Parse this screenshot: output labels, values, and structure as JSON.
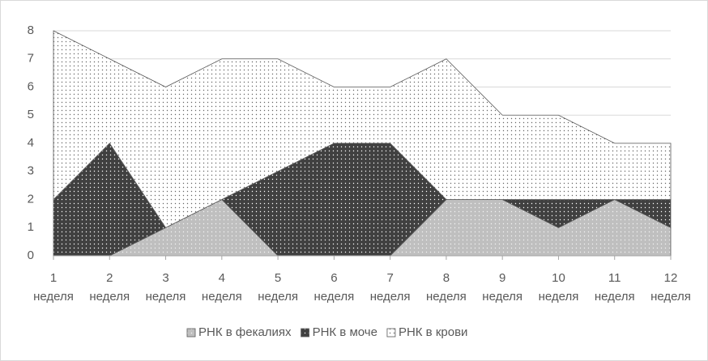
{
  "chart_data": {
    "type": "stacked_area",
    "categories": [
      "1 неделя",
      "2 неделя",
      "3 неделя",
      "4 неделя",
      "5 неделя",
      "6 неделя",
      "7 неделя",
      "8 неделя",
      "9 неделя",
      "10 неделя",
      "11 неделя",
      "12 неделя"
    ],
    "series": [
      {
        "name": "РНК в фекалиях",
        "color": "#bfbfbf",
        "values": [
          0,
          0,
          1,
          2,
          0,
          0,
          0,
          2,
          2,
          1,
          2,
          1
        ]
      },
      {
        "name": "РНК в моче",
        "color": "#404040",
        "values": [
          2,
          4,
          0,
          0,
          3,
          4,
          4,
          0,
          0,
          1,
          0,
          1
        ]
      },
      {
        "name": "РНК в крови",
        "color": "#ffffff",
        "values": [
          6,
          3,
          5,
          5,
          4,
          2,
          2,
          5,
          3,
          3,
          2,
          2
        ]
      }
    ],
    "ylim": [
      0,
      8
    ],
    "yticks": [
      0,
      1,
      2,
      3,
      4,
      5,
      6,
      7,
      8
    ],
    "grid": true,
    "legend": "bottom"
  }
}
